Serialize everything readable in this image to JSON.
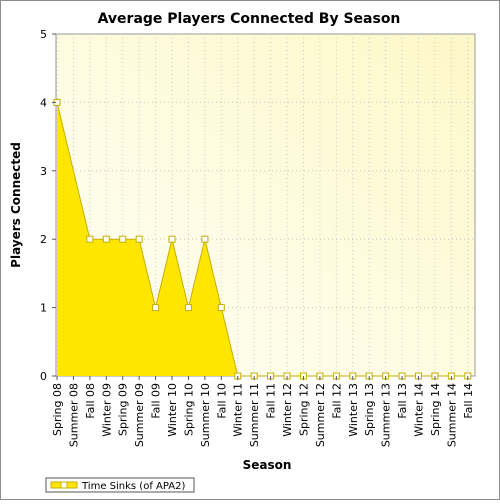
{
  "chart_data": {
    "type": "area",
    "title": "Average Players Connected By Season",
    "xlabel": "Season",
    "ylabel": "Players Connected",
    "ylim": [
      0,
      5
    ],
    "yticks": [
      0,
      1,
      2,
      3,
      4,
      5
    ],
    "grid": true,
    "legend_position": "bottom-left",
    "categories": [
      "Spring 08",
      "Summer 08",
      "Fall 08",
      "Winter 09",
      "Spring 09",
      "Summer 09",
      "Fall 09",
      "Winter 10",
      "Spring 10",
      "Summer 10",
      "Fall 10",
      "Winter 11",
      "Summer 11",
      "Fall 11",
      "Winter 12",
      "Spring 12",
      "Summer 12",
      "Fall 12",
      "Winter 13",
      "Spring 13",
      "Summer 13",
      "Fall 13",
      "Winter 14",
      "Spring 14",
      "Summer 14",
      "Fall 14"
    ],
    "series": [
      {
        "name": "Time Sinks (of APA2)",
        "color": "#ffe600",
        "line_color": "#c8ae00",
        "values": [
          4,
          null,
          2,
          2,
          2,
          2,
          1,
          2,
          1,
          2,
          1,
          0,
          0,
          0,
          0,
          0,
          0,
          0,
          0,
          0,
          0,
          0,
          0,
          0,
          0,
          0
        ]
      }
    ],
    "plot_background": [
      "#fffff7",
      "#fdf8c8"
    ]
  }
}
